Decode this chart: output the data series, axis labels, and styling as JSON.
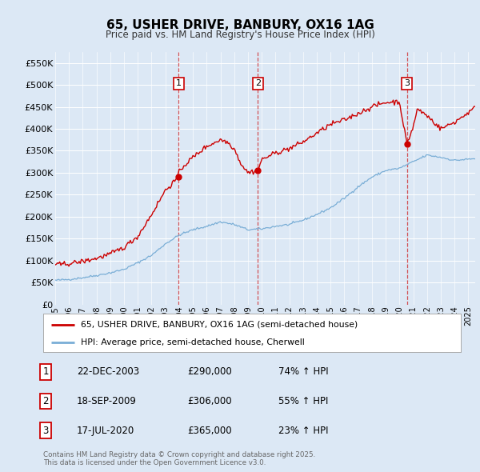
{
  "title": "65, USHER DRIVE, BANBURY, OX16 1AG",
  "subtitle": "Price paid vs. HM Land Registry's House Price Index (HPI)",
  "ylim": [
    0,
    575000
  ],
  "yticks": [
    0,
    50000,
    100000,
    150000,
    200000,
    250000,
    300000,
    350000,
    400000,
    450000,
    500000,
    550000
  ],
  "ytick_labels": [
    "£0",
    "£50K",
    "£100K",
    "£150K",
    "£200K",
    "£250K",
    "£300K",
    "£350K",
    "£400K",
    "£450K",
    "£500K",
    "£550K"
  ],
  "background_color": "#dce8f5",
  "grid_color": "#ffffff",
  "red_line_color": "#cc0000",
  "blue_line_color": "#7aaed6",
  "sale1_date": 2003.97,
  "sale1_price": 290000,
  "sale2_date": 2009.72,
  "sale2_price": 306000,
  "sale3_date": 2020.54,
  "sale3_price": 365000,
  "legend_red": "65, USHER DRIVE, BANBURY, OX16 1AG (semi-detached house)",
  "legend_blue": "HPI: Average price, semi-detached house, Cherwell",
  "table": [
    {
      "num": "1",
      "date": "22-DEC-2003",
      "price": "£290,000",
      "hpi": "74% ↑ HPI"
    },
    {
      "num": "2",
      "date": "18-SEP-2009",
      "price": "£306,000",
      "hpi": "55% ↑ HPI"
    },
    {
      "num": "3",
      "date": "17-JUL-2020",
      "price": "£365,000",
      "hpi": "23% ↑ HPI"
    }
  ],
  "footer": "Contains HM Land Registry data © Crown copyright and database right 2025.\nThis data is licensed under the Open Government Licence v3.0."
}
